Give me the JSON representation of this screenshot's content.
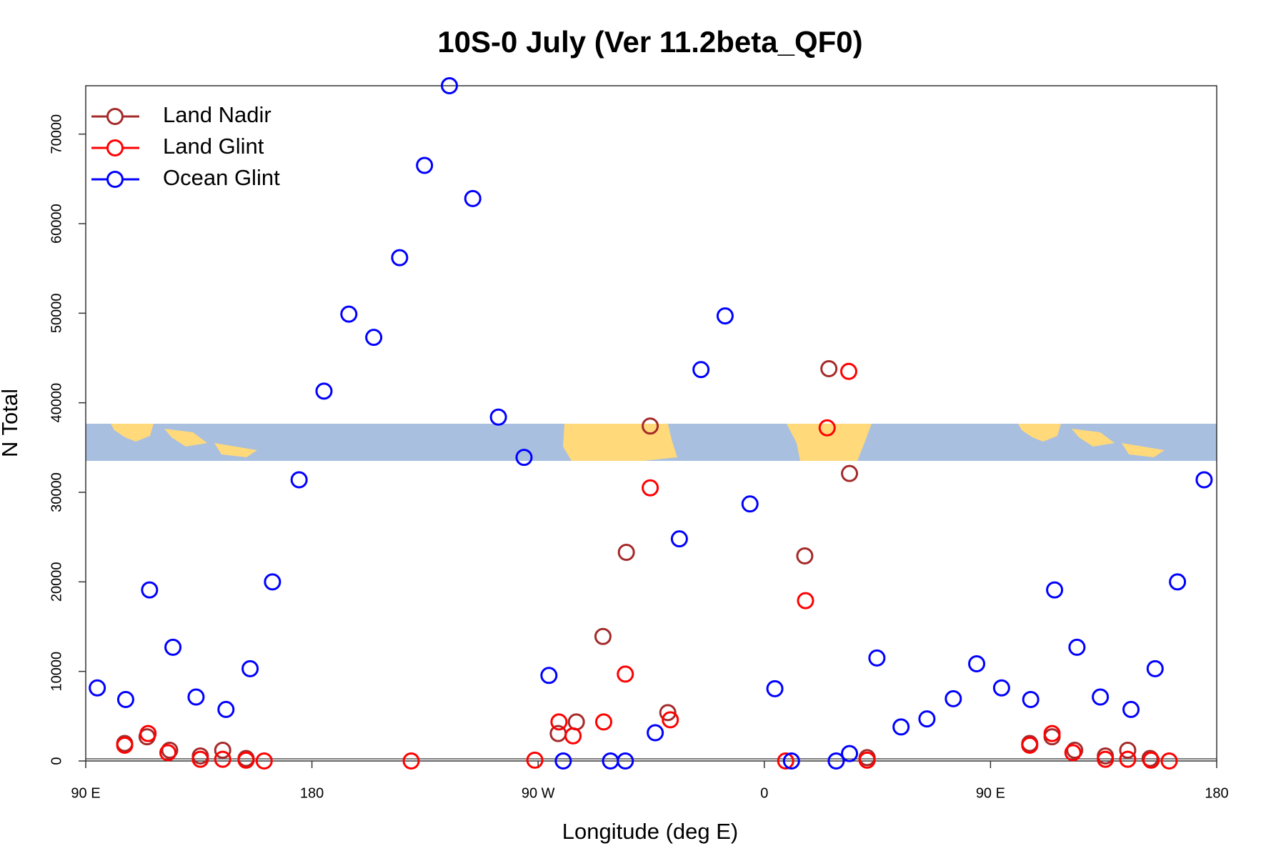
{
  "chart_data": {
    "type": "scatter",
    "title": "10S-0 July (Ver 11.2beta_QF0)",
    "x_label": "Longitude (deg E)",
    "y_label": "N Total",
    "xlim": [
      90,
      540
    ],
    "ylim": [
      0,
      75400
    ],
    "xticks": [
      {
        "value": 90,
        "label": "90 E"
      },
      180,
      {
        "value": 270,
        "label": "90 W"
      },
      {
        "value": 360,
        "label": "0"
      },
      {
        "value": 450,
        "label": "90 E"
      },
      {
        "value": 540,
        "label": "180"
      }
    ],
    "yticks": [
      0,
      10000,
      20000,
      30000,
      40000,
      50000,
      60000,
      70000
    ],
    "legend": "top-left",
    "series": [
      {
        "name": "Land Nadir",
        "color": "#a52a2a",
        "x": [
          105.5,
          114.4,
          123.4,
          135.6,
          144.5,
          153.8,
          278.0,
          285.2,
          295.8,
          305.1,
          314.6,
          321.6,
          376.1,
          385.7,
          393.9,
          400.9,
          465.6,
          474.5,
          483.5,
          495.7,
          504.6,
          513.5
        ],
        "values": [
          1950,
          2700,
          1200,
          560,
          1200,
          280,
          3060,
          4360,
          13900,
          23300,
          37400,
          5400,
          22900,
          43800,
          32100,
          370,
          1950,
          2700,
          1200,
          560,
          1200,
          280
        ]
      },
      {
        "name": "Land Glint",
        "color": "#ff0000",
        "x": [
          105.5,
          114.8,
          122.7,
          135.6,
          144.5,
          153.8,
          161.0,
          219.5,
          268.7,
          278.3,
          283.9,
          296.1,
          304.7,
          314.6,
          322.6,
          368.5,
          376.4,
          385.0,
          393.6,
          400.9,
          465.6,
          474.5,
          482.8,
          495.7,
          504.6,
          513.9,
          521.1
        ],
        "values": [
          1760,
          3060,
          930,
          190,
          190,
          90,
          0,
          0,
          90,
          4360,
          2800,
          4360,
          9700,
          30500,
          4600,
          0,
          17900,
          37200,
          43500,
          90,
          1760,
          3060,
          930,
          190,
          190,
          90,
          0
        ]
      },
      {
        "name": "Ocean Glint",
        "color": "#0000ff",
        "x": [
          94.6,
          105.9,
          115.4,
          124.7,
          133.9,
          145.8,
          155.4,
          164.3,
          174.9,
          184.8,
          194.7,
          204.6,
          214.9,
          224.8,
          234.7,
          244.0,
          254.2,
          264.4,
          274.3,
          280.0,
          298.8,
          304.7,
          316.6,
          326.2,
          334.8,
          344.4,
          354.3,
          364.2,
          370.8,
          388.6,
          393.9,
          404.8,
          414.4,
          424.7,
          435.2,
          444.5,
          454.4,
          466.0,
          475.5,
          484.4,
          493.7,
          505.9,
          515.5,
          524.4,
          535.0
        ],
        "values": [
          8160,
          6860,
          19100,
          12700,
          7140,
          5750,
          10300,
          20000,
          31400,
          41300,
          49900,
          47300,
          56200,
          66500,
          75400,
          62800,
          38400,
          33900,
          9550,
          0,
          0,
          0,
          3150,
          24800,
          43700,
          49700,
          28700,
          8070,
          0,
          0,
          830,
          11500,
          3800,
          4700,
          6950,
          10850,
          8160,
          6860,
          19100,
          12700,
          7140,
          5750,
          10300,
          20000,
          31400
        ]
      }
    ]
  }
}
